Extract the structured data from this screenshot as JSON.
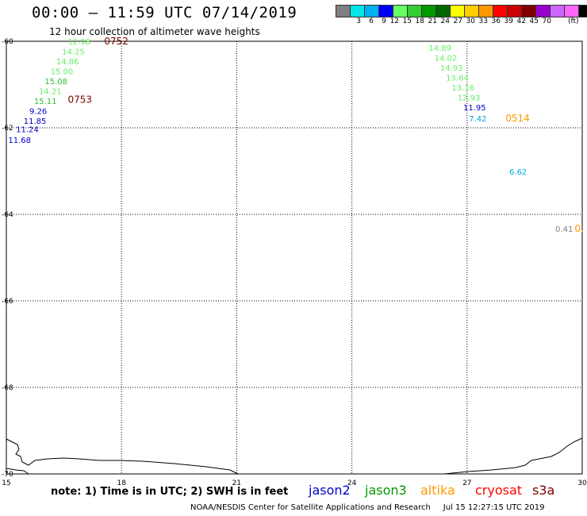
{
  "header": {
    "title": "00:00 – 11:59 UTC 07/14/2019",
    "subtitle": "12 hour collection of altimeter wave heights"
  },
  "color_scale": {
    "unit": "(ft)",
    "bins": [
      {
        "label": "",
        "color": "#808080"
      },
      {
        "label": "3",
        "color": "#00e5e5"
      },
      {
        "label": "6",
        "color": "#00b0f0"
      },
      {
        "label": "9",
        "color": "#0000ff"
      },
      {
        "label": "12",
        "color": "#66ff66"
      },
      {
        "label": "15",
        "color": "#33cc33"
      },
      {
        "label": "18",
        "color": "#009900"
      },
      {
        "label": "21",
        "color": "#006600"
      },
      {
        "label": "24",
        "color": "#ffff00"
      },
      {
        "label": "27",
        "color": "#ffcc00"
      },
      {
        "label": "30",
        "color": "#ff9900"
      },
      {
        "label": "33",
        "color": "#ff0000"
      },
      {
        "label": "36",
        "color": "#cc0000"
      },
      {
        "label": "39",
        "color": "#800000"
      },
      {
        "label": "42",
        "color": "#9900cc"
      },
      {
        "label": "45",
        "color": "#cc66ff"
      },
      {
        "label": "70",
        "color": "#ff66ff"
      },
      {
        "label": "",
        "color": "#000000"
      }
    ]
  },
  "axes": {
    "lat_labels": [
      "-60",
      "-62",
      "-64",
      "-66",
      "-68",
      "-70"
    ],
    "lon_labels": [
      "15",
      "18",
      "21",
      "24",
      "27",
      "30"
    ]
  },
  "observations": [
    {
      "text": "12.98",
      "lon": 16.6,
      "lat": -60.07,
      "color": "#66ee66"
    },
    {
      "text": "14.25",
      "lon": 16.45,
      "lat": -60.3,
      "color": "#66ee66"
    },
    {
      "text": "14.86",
      "lon": 16.3,
      "lat": -60.53,
      "color": "#66ee66"
    },
    {
      "text": "15.00",
      "lon": 16.15,
      "lat": -60.76,
      "color": "#66ee66"
    },
    {
      "text": "15.08",
      "lon": 16.0,
      "lat": -60.99,
      "color": "#33bb33"
    },
    {
      "text": "14.21",
      "lon": 15.85,
      "lat": -61.22,
      "color": "#66ee66"
    },
    {
      "text": "15.11",
      "lon": 15.72,
      "lat": -61.45,
      "color": "#33bb33"
    },
    {
      "text": "9.26",
      "lon": 15.6,
      "lat": -61.68,
      "color": "#0000cc"
    },
    {
      "text": "11.85",
      "lon": 15.45,
      "lat": -61.91,
      "color": "#0000cc"
    },
    {
      "text": "11.24",
      "lon": 15.25,
      "lat": -62.1,
      "color": "#0000cc"
    },
    {
      "text": "11.68",
      "lon": 15.05,
      "lat": -62.35,
      "color": "#0000cc"
    },
    {
      "text": "14.89",
      "lon": 26.0,
      "lat": -60.22,
      "color": "#66ee66"
    },
    {
      "text": "14.02",
      "lon": 26.15,
      "lat": -60.45,
      "color": "#66ee66"
    },
    {
      "text": "14.93",
      "lon": 26.3,
      "lat": -60.68,
      "color": "#66ee66"
    },
    {
      "text": "13.64",
      "lon": 26.45,
      "lat": -60.91,
      "color": "#66ee66"
    },
    {
      "text": "13.16",
      "lon": 26.6,
      "lat": -61.14,
      "color": "#66ee66"
    },
    {
      "text": "12.93",
      "lon": 26.75,
      "lat": -61.37,
      "color": "#66ee66"
    },
    {
      "text": "11.95",
      "lon": 26.9,
      "lat": -61.6,
      "color": "#0000cc"
    },
    {
      "text": "7.42",
      "lon": 27.05,
      "lat": -61.85,
      "color": "#00aadd"
    },
    {
      "text": "6.62",
      "lon": 28.1,
      "lat": -63.08,
      "color": "#00aadd"
    },
    {
      "text": "0.41",
      "lon": 29.3,
      "lat": -64.4,
      "color": "#808080"
    }
  ],
  "pass_labels": [
    {
      "text": "0752",
      "lon": 17.55,
      "lat": -60.07,
      "color": "#800000"
    },
    {
      "text": "0753",
      "lon": 16.6,
      "lat": -61.42,
      "color": "#800000"
    },
    {
      "text": "0514",
      "lon": 28.0,
      "lat": -61.85,
      "color": "#ff9900"
    },
    {
      "text": "0.",
      "lon": 29.8,
      "lat": -64.4,
      "color": "#ff9900"
    }
  ],
  "note": "note: 1) Time is in UTC; 2) SWH is in feet",
  "satellites": [
    {
      "name": "jason2",
      "color": "#0000cc"
    },
    {
      "name": "jason3",
      "color": "#009900"
    },
    {
      "name": "altika",
      "color": "#ff9900"
    },
    {
      "name": "cryosat",
      "color": "#ff0000"
    },
    {
      "name": "s3a",
      "color": "#800000"
    }
  ],
  "footer": "NOAA/NESDIS Center for Satellite Applications and Research     Jul 15 12:27:15 UTC 2019"
}
